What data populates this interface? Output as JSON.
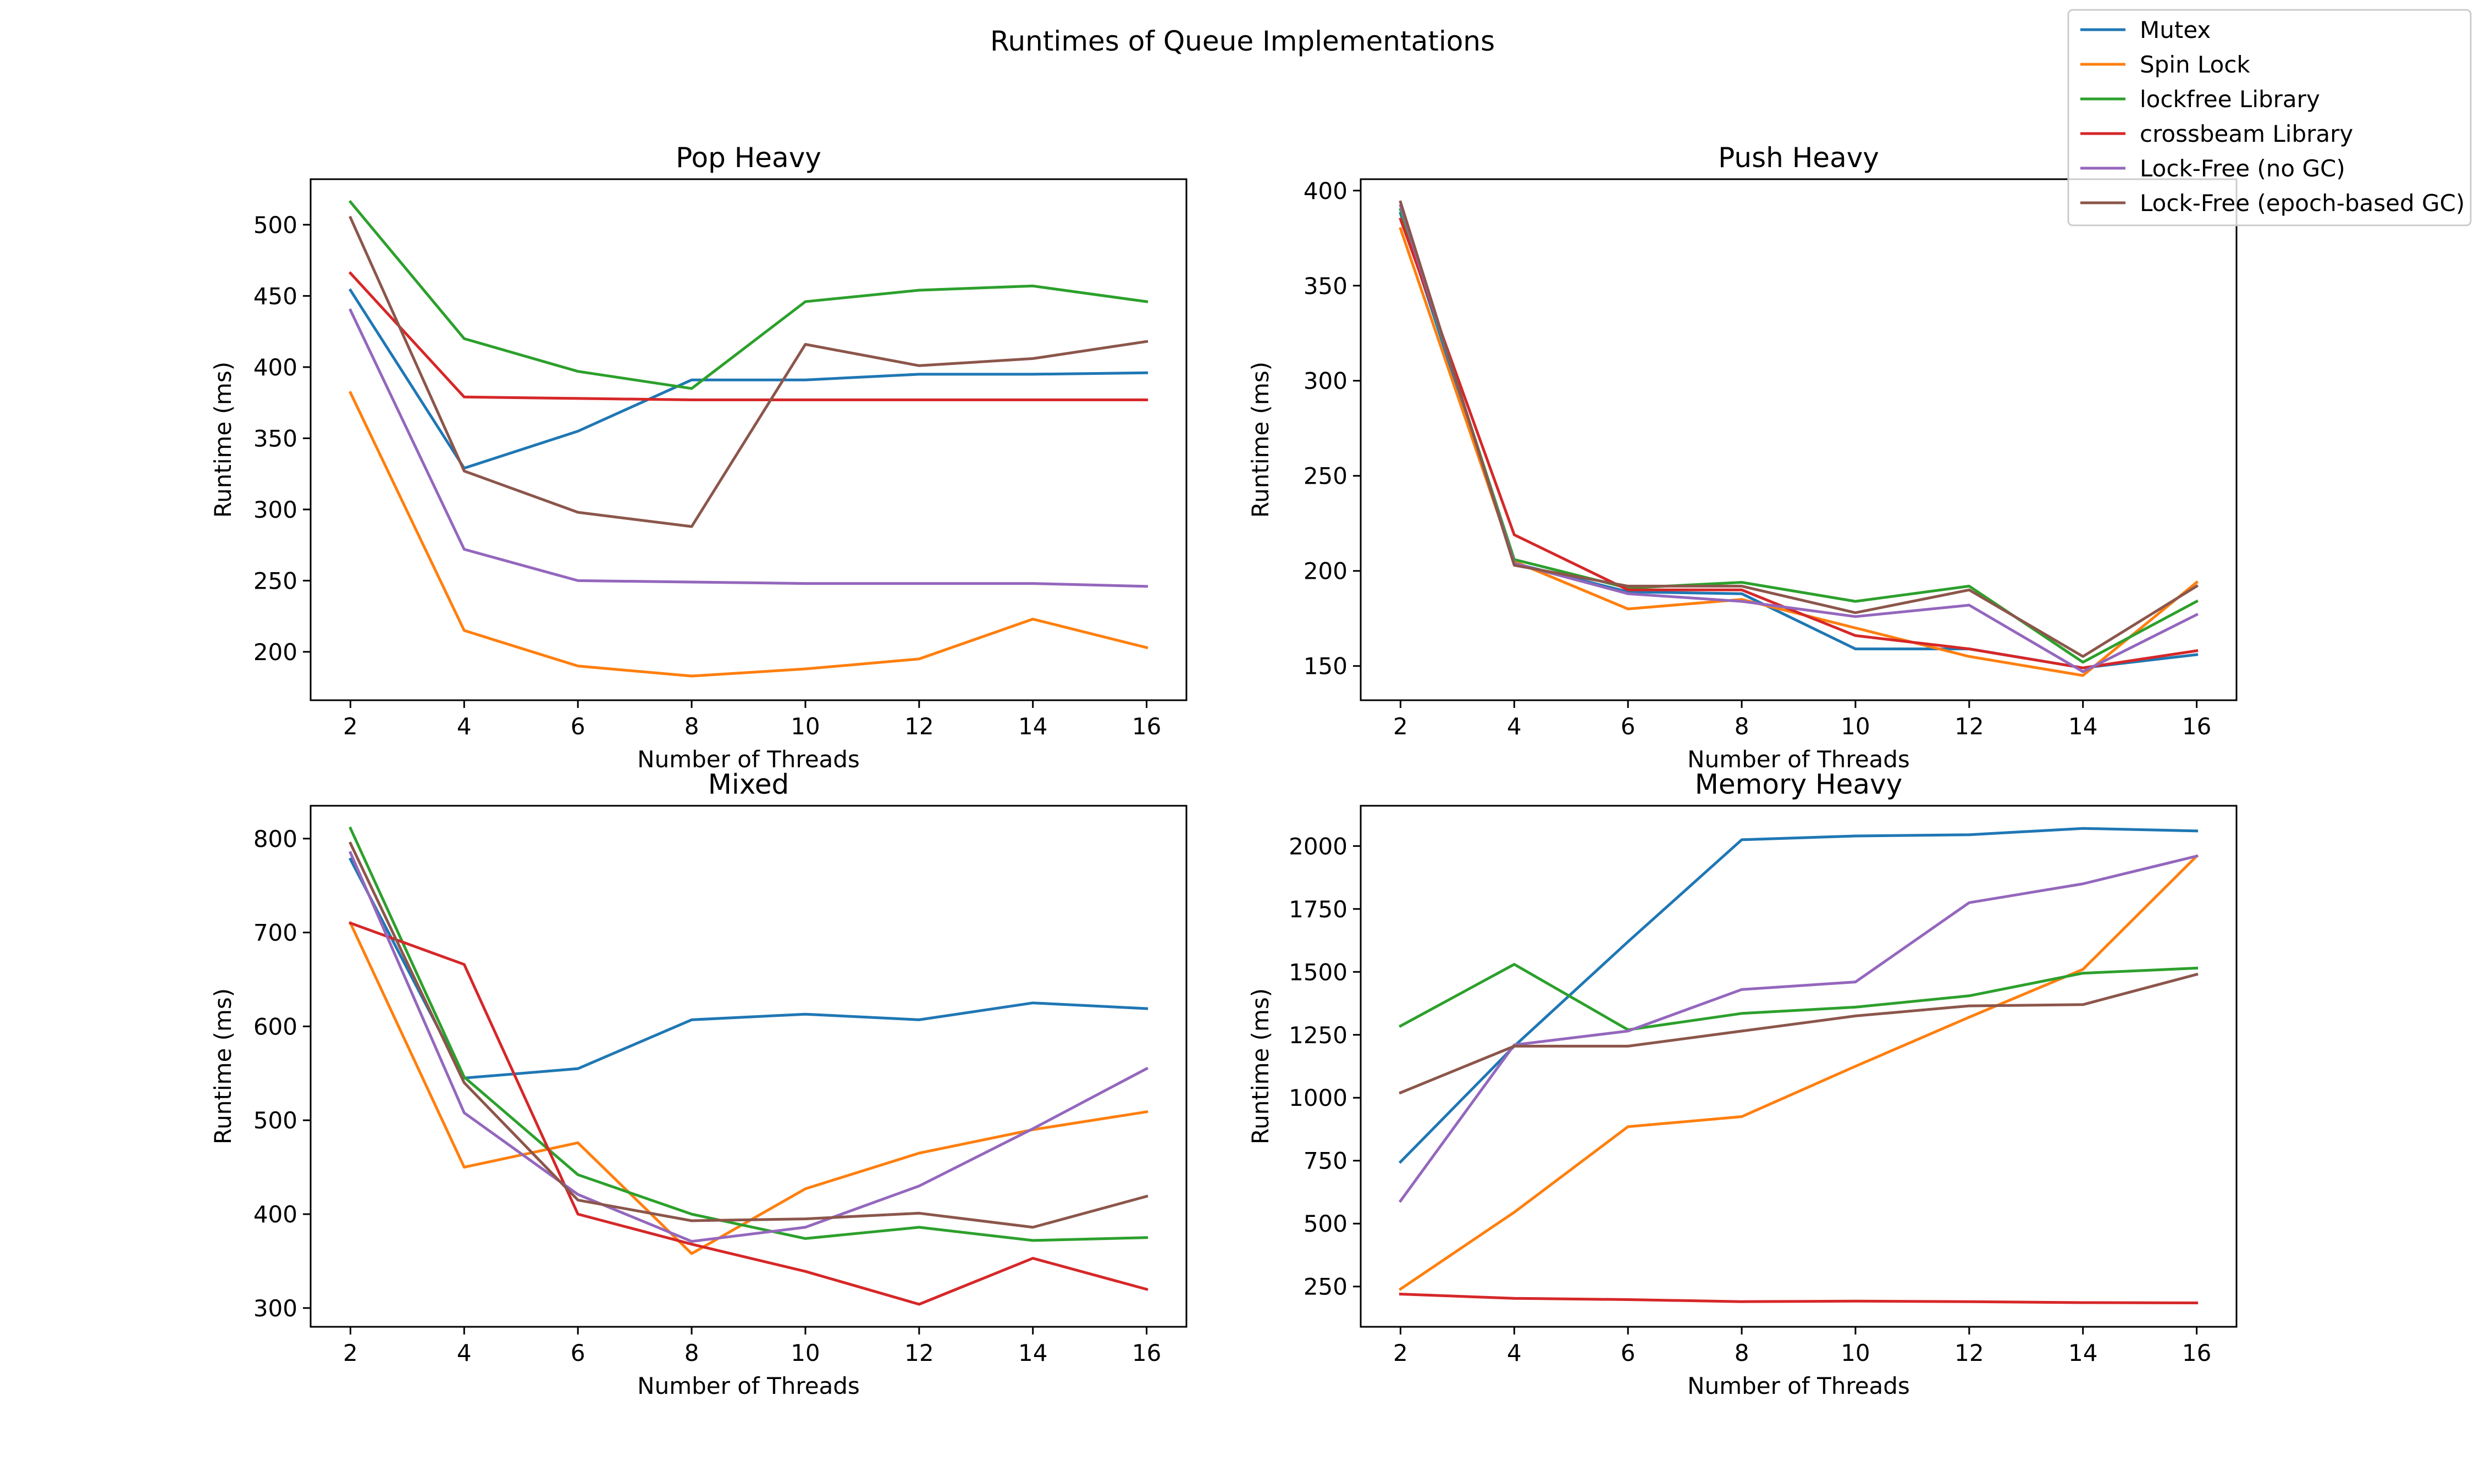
{
  "figure_title": "Runtimes of Queue Implementations",
  "legend": {
    "placement": "upper right of figure",
    "entries": [
      {
        "label": "Mutex",
        "color": "#1f77b4"
      },
      {
        "label": "Spin Lock",
        "color": "#ff7f0e"
      },
      {
        "label": "lockfree Library",
        "color": "#2ca02c"
      },
      {
        "label": "crossbeam Library",
        "color": "#d62728"
      },
      {
        "label": "Lock-Free (no GC)",
        "color": "#9467bd"
      },
      {
        "label": "Lock-Free (epoch-based GC)",
        "color": "#8c564b"
      }
    ]
  },
  "chart_data": [
    {
      "type": "line",
      "title": "Pop Heavy",
      "xlabel": "Number of Threads",
      "ylabel": "Runtime (ms)",
      "x": [
        2,
        4,
        6,
        8,
        10,
        12,
        14,
        16
      ],
      "xticks": [
        "2",
        "4",
        "6",
        "8",
        "10",
        "12",
        "14",
        "16"
      ],
      "xlim": [
        1.3,
        16.7
      ],
      "ylim": [
        166,
        532
      ],
      "yticks": [
        "200",
        "250",
        "300",
        "350",
        "400",
        "450",
        "500"
      ],
      "ytick_values": [
        200,
        250,
        300,
        350,
        400,
        450,
        500
      ],
      "grid": false,
      "series": [
        {
          "name": "Mutex",
          "color": "#1f77b4",
          "values": [
            454,
            329,
            355,
            391,
            391,
            395,
            395,
            396
          ]
        },
        {
          "name": "Spin Lock",
          "color": "#ff7f0e",
          "values": [
            382,
            215,
            190,
            183,
            188,
            195,
            223,
            203
          ]
        },
        {
          "name": "lockfree Library",
          "color": "#2ca02c",
          "values": [
            516,
            420,
            397,
            385,
            446,
            454,
            457,
            446
          ]
        },
        {
          "name": "crossbeam Library",
          "color": "#d62728",
          "values": [
            466,
            379,
            378,
            377,
            377,
            377,
            377,
            377
          ]
        },
        {
          "name": "Lock-Free (no GC)",
          "color": "#9467bd",
          "values": [
            440,
            272,
            250,
            249,
            248,
            248,
            248,
            246
          ]
        },
        {
          "name": "Lock-Free (epoch-based GC)",
          "color": "#8c564b",
          "values": [
            505,
            327,
            298,
            288,
            416,
            401,
            406,
            418
          ]
        }
      ]
    },
    {
      "type": "line",
      "title": "Push Heavy",
      "xlabel": "Number of Threads",
      "ylabel": "Runtime (ms)",
      "x": [
        2,
        4,
        6,
        8,
        10,
        12,
        14,
        16
      ],
      "xticks": [
        "2",
        "4",
        "6",
        "8",
        "10",
        "12",
        "14",
        "16"
      ],
      "xlim": [
        1.3,
        16.7
      ],
      "ylim": [
        132,
        406
      ],
      "yticks": [
        "150",
        "200",
        "250",
        "300",
        "350",
        "400"
      ],
      "ytick_values": [
        150,
        200,
        250,
        300,
        350,
        400
      ],
      "grid": false,
      "series": [
        {
          "name": "Mutex",
          "color": "#1f77b4",
          "values": [
            388,
            204,
            189,
            188,
            159,
            159,
            149,
            156
          ]
        },
        {
          "name": "Spin Lock",
          "color": "#ff7f0e",
          "values": [
            380,
            205,
            180,
            185,
            170,
            155,
            145,
            194
          ]
        },
        {
          "name": "lockfree Library",
          "color": "#2ca02c",
          "values": [
            390,
            206,
            191,
            194,
            184,
            192,
            152,
            184
          ]
        },
        {
          "name": "crossbeam Library",
          "color": "#d62728",
          "values": [
            385,
            219,
            190,
            190,
            166,
            159,
            149,
            158
          ]
        },
        {
          "name": "Lock-Free (no GC)",
          "color": "#9467bd",
          "values": [
            392,
            204,
            188,
            184,
            176,
            182,
            147,
            177
          ]
        },
        {
          "name": "Lock-Free (epoch-based GC)",
          "color": "#8c564b",
          "values": [
            394,
            203,
            192,
            192,
            178,
            190,
            155,
            192
          ]
        }
      ]
    },
    {
      "type": "line",
      "title": "Mixed",
      "xlabel": "Number of Threads",
      "ylabel": "Runtime (ms)",
      "x": [
        2,
        4,
        6,
        8,
        10,
        12,
        14,
        16
      ],
      "xticks": [
        "2",
        "4",
        "6",
        "8",
        "10",
        "12",
        "14",
        "16"
      ],
      "xlim": [
        1.3,
        16.7
      ],
      "ylim": [
        280,
        835
      ],
      "yticks": [
        "300",
        "400",
        "500",
        "600",
        "700",
        "800"
      ],
      "ytick_values": [
        300,
        400,
        500,
        600,
        700,
        800
      ],
      "grid": false,
      "series": [
        {
          "name": "Mutex",
          "color": "#1f77b4",
          "values": [
            778,
            545,
            555,
            607,
            613,
            607,
            625,
            619
          ]
        },
        {
          "name": "Spin Lock",
          "color": "#ff7f0e",
          "values": [
            710,
            450,
            476,
            358,
            427,
            465,
            490,
            509
          ]
        },
        {
          "name": "lockfree Library",
          "color": "#2ca02c",
          "values": [
            811,
            546,
            442,
            400,
            374,
            386,
            372,
            375
          ]
        },
        {
          "name": "crossbeam Library",
          "color": "#d62728",
          "values": [
            710,
            666,
            400,
            368,
            339,
            304,
            353,
            320
          ]
        },
        {
          "name": "Lock-Free (no GC)",
          "color": "#9467bd",
          "values": [
            785,
            508,
            421,
            371,
            386,
            430,
            491,
            555
          ]
        },
        {
          "name": "Lock-Free (epoch-based GC)",
          "color": "#8c564b",
          "values": [
            795,
            540,
            415,
            393,
            395,
            401,
            386,
            419
          ]
        }
      ]
    },
    {
      "type": "line",
      "title": "Memory Heavy",
      "xlabel": "Number of Threads",
      "ylabel": "Runtime (ms)",
      "x": [
        2,
        4,
        6,
        8,
        10,
        12,
        14,
        16
      ],
      "xticks": [
        "2",
        "4",
        "6",
        "8",
        "10",
        "12",
        "14",
        "16"
      ],
      "xlim": [
        1.3,
        16.7
      ],
      "ylim": [
        90,
        2160
      ],
      "yticks": [
        "250",
        "500",
        "750",
        "1000",
        "1250",
        "1500",
        "1750",
        "2000"
      ],
      "ytick_values": [
        250,
        500,
        750,
        1000,
        1250,
        1500,
        1750,
        2000
      ],
      "grid": false,
      "series": [
        {
          "name": "Mutex",
          "color": "#1f77b4",
          "values": [
            745,
            1205,
            1620,
            2025,
            2040,
            2045,
            2070,
            2060
          ]
        },
        {
          "name": "Spin Lock",
          "color": "#ff7f0e",
          "values": [
            240,
            545,
            885,
            925,
            1125,
            1320,
            1510,
            1960
          ]
        },
        {
          "name": "lockfree Library",
          "color": "#2ca02c",
          "values": [
            1285,
            1530,
            1270,
            1335,
            1360,
            1405,
            1495,
            1515
          ]
        },
        {
          "name": "crossbeam Library",
          "color": "#d62728",
          "values": [
            220,
            203,
            198,
            190,
            192,
            190,
            186,
            185
          ]
        },
        {
          "name": "Lock-Free (no GC)",
          "color": "#9467bd",
          "values": [
            590,
            1210,
            1265,
            1430,
            1460,
            1775,
            1850,
            1960
          ]
        },
        {
          "name": "Lock-Free (epoch-based GC)",
          "color": "#8c564b",
          "values": [
            1020,
            1205,
            1205,
            1265,
            1325,
            1365,
            1370,
            1490
          ]
        }
      ]
    }
  ]
}
